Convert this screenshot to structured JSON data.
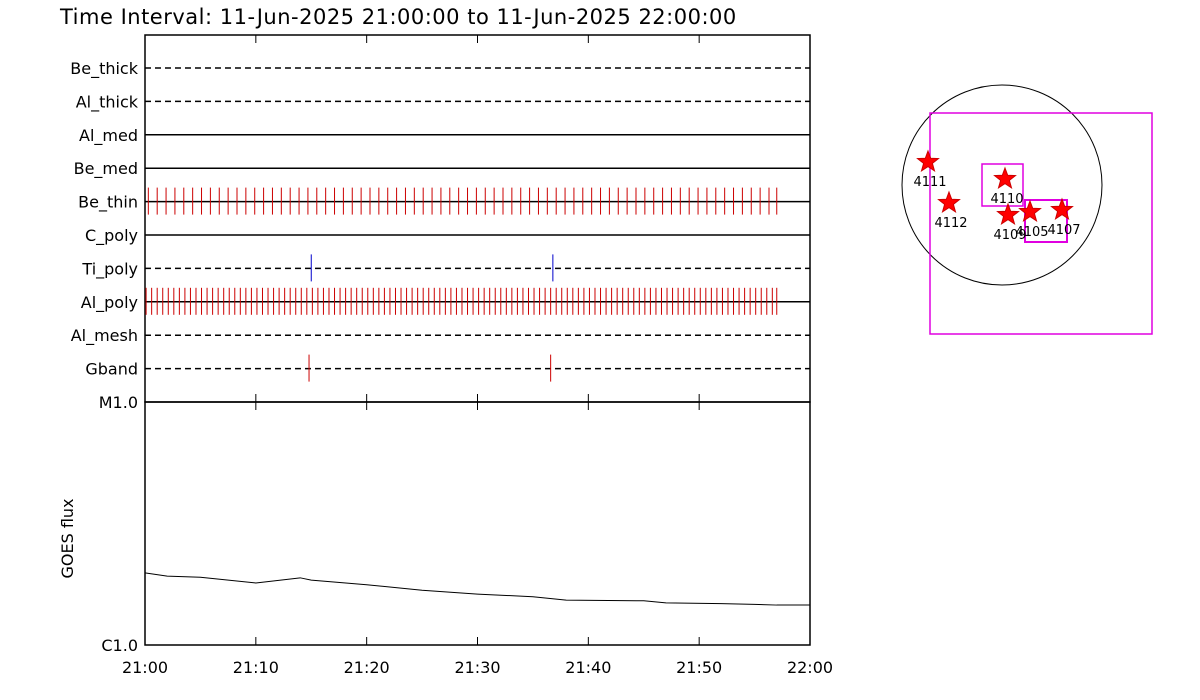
{
  "chart_data": {
    "type": "timeline",
    "title": "Time Interval: 11-Jun-2025 21:00:00 to 11-Jun-2025 22:00:00",
    "xlim": [
      0,
      60
    ],
    "xticks": [
      {
        "value": 0,
        "label": "21:00"
      },
      {
        "value": 10,
        "label": "21:10"
      },
      {
        "value": 20,
        "label": "21:20"
      },
      {
        "value": 30,
        "label": "21:30"
      },
      {
        "value": 40,
        "label": "21:40"
      },
      {
        "value": 50,
        "label": "21:50"
      },
      {
        "value": 60,
        "label": "22:00"
      }
    ],
    "filters": [
      {
        "name": "Be_thick",
        "line": "dashed",
        "color": "#cc0000",
        "exposures": []
      },
      {
        "name": "Al_thick",
        "line": "dashed",
        "color": "#cc0000",
        "exposures": []
      },
      {
        "name": "Al_med",
        "line": "solid",
        "color": "#cc0000",
        "exposures": []
      },
      {
        "name": "Be_med",
        "line": "solid",
        "color": "#cc0000",
        "exposures": []
      },
      {
        "name": "Be_thin",
        "line": "solid",
        "color": "#cc0000",
        "exposures": [
          0.3,
          1.1,
          1.9,
          2.7,
          3.5,
          4.3,
          5.1,
          5.9,
          6.7,
          7.5,
          8.3,
          9.1,
          9.9,
          10.7,
          11.5,
          12.3,
          13.1,
          13.9,
          14.7,
          15.5,
          16.3,
          17.1,
          17.9,
          18.7,
          19.5,
          20.3,
          21.1,
          21.9,
          22.7,
          23.5,
          24.3,
          25.1,
          25.9,
          26.7,
          27.5,
          28.3,
          29.1,
          29.9,
          30.7,
          31.5,
          32.3,
          33.1,
          33.9,
          34.7,
          35.5,
          36.3,
          37.1,
          37.9,
          38.7,
          39.5,
          40.3,
          41.1,
          41.9,
          42.7,
          43.5,
          44.3,
          45.1,
          45.9,
          46.7,
          47.5,
          48.3,
          49.1,
          49.9,
          50.7,
          51.5,
          52.3,
          53.1,
          53.9,
          54.7,
          55.5,
          56.3,
          57.0
        ]
      },
      {
        "name": "C_poly",
        "line": "solid",
        "color": "#cc0000",
        "exposures": []
      },
      {
        "name": "Ti_poly",
        "line": "dashed",
        "color": "#0000cc",
        "exposures": [
          15.0,
          36.8
        ]
      },
      {
        "name": "Al_poly",
        "line": "solid",
        "color": "#cc0000",
        "exposures": [
          0.1,
          0.6,
          1.1,
          1.6,
          2.1,
          2.6,
          3.1,
          3.6,
          4.1,
          4.6,
          5.1,
          5.6,
          6.1,
          6.6,
          7.1,
          7.6,
          8.1,
          8.6,
          9.1,
          9.6,
          10.1,
          10.6,
          11.1,
          11.6,
          12.1,
          12.6,
          13.1,
          13.6,
          14.1,
          14.6,
          15.1,
          15.6,
          16.1,
          16.6,
          17.1,
          17.6,
          18.1,
          18.6,
          19.1,
          19.6,
          20.1,
          20.6,
          21.1,
          21.6,
          22.1,
          22.6,
          23.1,
          23.6,
          24.1,
          24.6,
          25.1,
          25.6,
          26.1,
          26.6,
          27.1,
          27.6,
          28.1,
          28.6,
          29.1,
          29.6,
          30.1,
          30.6,
          31.1,
          31.6,
          32.1,
          32.6,
          33.1,
          33.6,
          34.1,
          34.6,
          35.1,
          35.6,
          36.1,
          36.6,
          37.1,
          37.6,
          38.1,
          38.6,
          39.1,
          39.6,
          40.1,
          40.6,
          41.1,
          41.6,
          42.1,
          42.6,
          43.1,
          43.6,
          44.1,
          44.6,
          45.1,
          45.6,
          46.1,
          46.6,
          47.1,
          47.6,
          48.1,
          48.6,
          49.1,
          49.6,
          50.1,
          50.6,
          51.1,
          51.6,
          52.1,
          52.6,
          53.1,
          53.6,
          54.1,
          54.6,
          55.1,
          55.6,
          56.1,
          56.6,
          57.0
        ]
      },
      {
        "name": "Al_mesh",
        "line": "dashed",
        "color": "#cc0000",
        "exposures": []
      },
      {
        "name": "Gband",
        "line": "dashed",
        "color": "#cc0000",
        "exposures": [
          14.8,
          36.6
        ]
      }
    ],
    "goes": {
      "ylabel": "GOES flux",
      "log": true,
      "ylim": [
        1e-06,
        1e-05
      ],
      "yticks": [
        {
          "value": 1e-06,
          "label": "C1.0"
        },
        {
          "value": 1e-05,
          "label": "M1.0"
        }
      ],
      "x": [
        0,
        2,
        5,
        10,
        14,
        15,
        20,
        25,
        30,
        35,
        38,
        45,
        47,
        52,
        55,
        57,
        60
      ],
      "values": [
        1.98e-06,
        1.92e-06,
        1.9e-06,
        1.8e-06,
        1.89e-06,
        1.85e-06,
        1.77e-06,
        1.68e-06,
        1.62e-06,
        1.58e-06,
        1.53e-06,
        1.52e-06,
        1.49e-06,
        1.48e-06,
        1.47e-06,
        1.46e-06,
        1.46e-06
      ]
    },
    "regions": [
      "4111",
      "4112",
      "4110",
      "4109",
      "4105",
      "4107"
    ]
  }
}
